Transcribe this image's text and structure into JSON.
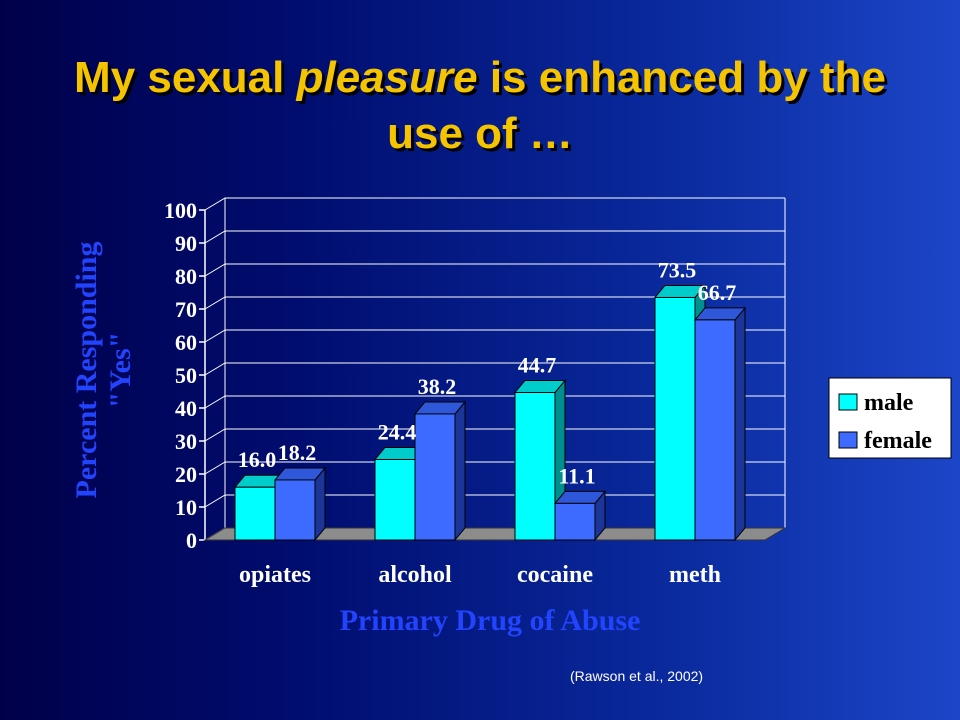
{
  "title": {
    "part1": "My sexual ",
    "emphasis": "pleasure",
    "part2": " is enhanced by the use of …"
  },
  "citation": "(Rawson et al., 2002)",
  "colors": {
    "male_front": "#00ffff",
    "male_side": "#008f8f",
    "male_top": "#00cccc",
    "female_front": "#3d6bff",
    "female_side": "#1b3599",
    "female_top": "#2f57d9",
    "axis_label": "#2244ff",
    "title": "#f5c400"
  },
  "chart_data": {
    "type": "bar",
    "categories": [
      "opiates",
      "alcohol",
      "cocaine",
      "meth"
    ],
    "series": [
      {
        "name": "male",
        "values": [
          16.0,
          24.4,
          44.7,
          73.5
        ],
        "labels": [
          "16.0",
          "24.4",
          "44.7",
          "73.5"
        ]
      },
      {
        "name": "female",
        "values": [
          18.2,
          38.2,
          11.1,
          66.7
        ],
        "labels": [
          "18.2",
          "38.2",
          "11.1",
          "66.7"
        ]
      }
    ],
    "xlabel": "Primary Drug of Abuse",
    "ylabel_line1": "Percent Responding",
    "ylabel_line2": "\"Yes\"",
    "ylim": [
      0,
      100
    ],
    "yticks": [
      0,
      10,
      20,
      30,
      40,
      50,
      60,
      70,
      80,
      90,
      100
    ],
    "grid": true,
    "legend_position": "right"
  }
}
